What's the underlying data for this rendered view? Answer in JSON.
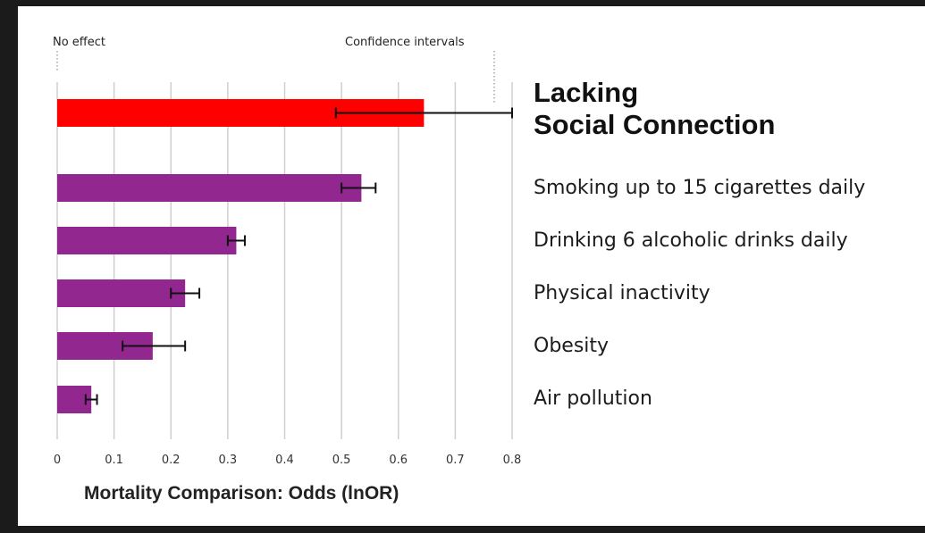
{
  "chart_data": {
    "type": "bar",
    "orientation": "horizontal",
    "title": "",
    "xlabel": "Mortality Comparison: Odds (lnOR)",
    "ylabel": "",
    "xlim": [
      0,
      0.8
    ],
    "x_ticks": [
      "0",
      "0.1",
      "0.2",
      "0.3",
      "0.4",
      "0.5",
      "0.6",
      "0.7",
      "0.8"
    ],
    "grid": "vertical",
    "categories": [
      "Lacking Social Connection",
      "Smoking up to 15 cigarettes daily",
      "Drinking 6 alcoholic drinks daily",
      "Physical inactivity",
      "Obesity",
      "Air pollution"
    ],
    "values": [
      0.645,
      0.535,
      0.315,
      0.225,
      0.168,
      0.06
    ],
    "ci_low": [
      0.49,
      0.5,
      0.3,
      0.2,
      0.115,
      0.05
    ],
    "ci_high": [
      0.8,
      0.56,
      0.33,
      0.25,
      0.225,
      0.07
    ],
    "annotations": [
      "No effect",
      "Confidence intervals"
    ]
  },
  "labels": {
    "highlight_line1": "Lacking",
    "highlight_line2": "Social Connection",
    "smoking": "Smoking up to 15 cigarettes daily",
    "drinking": "Drinking 6 alcoholic drinks daily",
    "inactivity": "Physical inactivity",
    "obesity": "Obesity",
    "pollution": "Air pollution",
    "no_effect": "No effect",
    "confidence": "Confidence intervals"
  },
  "colors": {
    "highlight": "#ff0000",
    "bars": "#92278f",
    "background": "#1b1b1b",
    "panel": "#ffffff",
    "grid": "#cfcfcf",
    "error_bar": "#111111"
  }
}
